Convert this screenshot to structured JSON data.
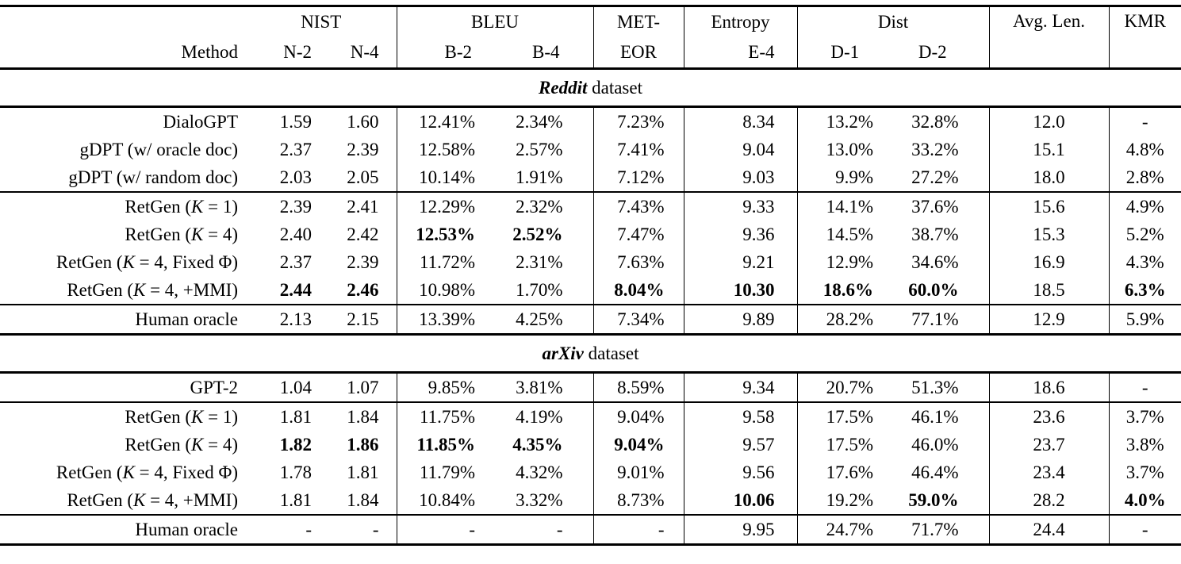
{
  "header": {
    "method_label": "Method",
    "nist": "NIST",
    "n2": "N-2",
    "n4": "N-4",
    "bleu": "BLEU",
    "b2": "B-2",
    "b4": "B-4",
    "meteor_line1": "MET-",
    "meteor_line2": "EOR",
    "entropy": "Entropy",
    "e4": "E-4",
    "dist": "Dist",
    "d1": "D-1",
    "d2": "D-2",
    "avg_len": "Avg. Len.",
    "kmr": "KMR"
  },
  "columns": [
    "n2",
    "n4",
    "b2",
    "b4",
    "meteor",
    "e4",
    "d1",
    "d2",
    "avg-len",
    "kmr"
  ],
  "sections": [
    {
      "id": "reddit",
      "label_em": "Reddit",
      "label_rest": " dataset",
      "groups": [
        {
          "rows": [
            {
              "method": "DialoGPT",
              "values": [
                "1.59",
                "1.60",
                "12.41%",
                "2.34%",
                "7.23%",
                "8.34",
                "13.2%",
                "32.8%",
                "12.0",
                "-"
              ],
              "bold": []
            },
            {
              "method": "gDPT (w/ oracle doc)",
              "values": [
                "2.37",
                "2.39",
                "12.58%",
                "2.57%",
                "7.41%",
                "9.04",
                "13.0%",
                "33.2%",
                "15.1",
                "4.8%"
              ],
              "bold": []
            },
            {
              "method": "gDPT (w/ random doc)",
              "values": [
                "2.03",
                "2.05",
                "10.14%",
                "1.91%",
                "7.12%",
                "9.03",
                "9.9%",
                "27.2%",
                "18.0",
                "2.8%"
              ],
              "bold": []
            }
          ]
        },
        {
          "rows": [
            {
              "method": "RetGen (K = 1)",
              "values": [
                "2.39",
                "2.41",
                "12.29%",
                "2.32%",
                "7.43%",
                "9.33",
                "14.1%",
                "37.6%",
                "15.6",
                "4.9%"
              ],
              "bold": []
            },
            {
              "method": "RetGen (K = 4)",
              "values": [
                "2.40",
                "2.42",
                "12.53%",
                "2.52%",
                "7.47%",
                "9.36",
                "14.5%",
                "38.7%",
                "15.3",
                "5.2%"
              ],
              "bold": [
                2,
                3
              ]
            },
            {
              "method": "RetGen (K = 4, Fixed Φ)",
              "values": [
                "2.37",
                "2.39",
                "11.72%",
                "2.31%",
                "7.63%",
                "9.21",
                "12.9%",
                "34.6%",
                "16.9",
                "4.3%"
              ],
              "bold": []
            },
            {
              "method": "RetGen (K = 4, +MMI)",
              "values": [
                "2.44",
                "2.46",
                "10.98%",
                "1.70%",
                "8.04%",
                "10.30",
                "18.6%",
                "60.0%",
                "18.5",
                "6.3%"
              ],
              "bold": [
                0,
                1,
                4,
                5,
                6,
                7,
                9
              ]
            }
          ]
        },
        {
          "rows": [
            {
              "method": "Human oracle",
              "values": [
                "2.13",
                "2.15",
                "13.39%",
                "4.25%",
                "7.34%",
                "9.89",
                "28.2%",
                "77.1%",
                "12.9",
                "5.9%"
              ],
              "bold": []
            }
          ]
        }
      ]
    },
    {
      "id": "arxiv",
      "label_em": "arXiv",
      "label_rest": " dataset",
      "groups": [
        {
          "rows": [
            {
              "method": "GPT-2",
              "values": [
                "1.04",
                "1.07",
                "9.85%",
                "3.81%",
                "8.59%",
                "9.34",
                "20.7%",
                "51.3%",
                "18.6",
                "-"
              ],
              "bold": []
            }
          ]
        },
        {
          "rows": [
            {
              "method": "RetGen (K = 1)",
              "values": [
                "1.81",
                "1.84",
                "11.75%",
                "4.19%",
                "9.04%",
                "9.58",
                "17.5%",
                "46.1%",
                "23.6",
                "3.7%"
              ],
              "bold": []
            },
            {
              "method": "RetGen (K = 4)",
              "values": [
                "1.82",
                "1.86",
                "11.85%",
                "4.35%",
                "9.04%",
                "9.57",
                "17.5%",
                "46.0%",
                "23.7",
                "3.8%"
              ],
              "bold": [
                0,
                1,
                2,
                3,
                4
              ]
            },
            {
              "method": "RetGen (K = 4, Fixed Φ)",
              "values": [
                "1.78",
                "1.81",
                "11.79%",
                "4.32%",
                "9.01%",
                "9.56",
                "17.6%",
                "46.4%",
                "23.4",
                "3.7%"
              ],
              "bold": []
            },
            {
              "method": "RetGen (K = 4, +MMI)",
              "values": [
                "1.81",
                "1.84",
                "10.84%",
                "3.32%",
                "8.73%",
                "10.06",
                "19.2%",
                "59.0%",
                "28.2",
                "4.0%"
              ],
              "bold": [
                5,
                7,
                9
              ]
            }
          ]
        },
        {
          "rows": [
            {
              "method": "Human oracle",
              "values": [
                "-",
                "-",
                "-",
                "-",
                "-",
                "9.95",
                "24.7%",
                "71.7%",
                "24.4",
                "-"
              ],
              "bold": []
            }
          ]
        }
      ]
    }
  ]
}
